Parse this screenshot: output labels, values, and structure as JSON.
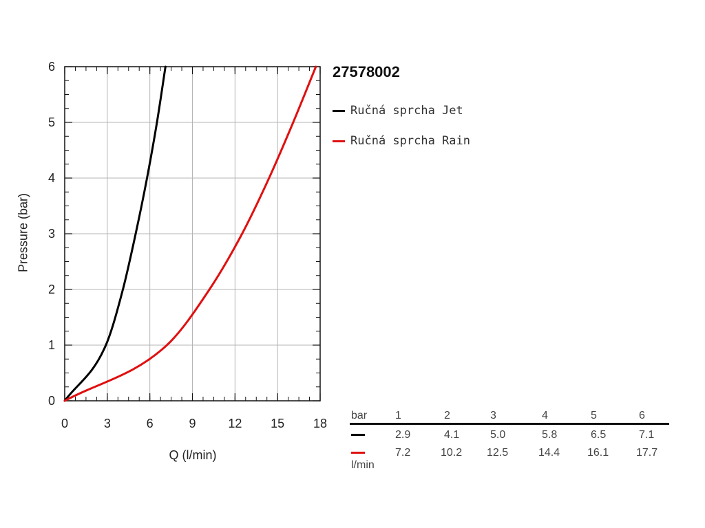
{
  "chart_data": {
    "type": "line",
    "title": "27578002",
    "xlabel": "Q (l/min)",
    "ylabel": "Pressure (bar)",
    "xlim": [
      0,
      18
    ],
    "ylim": [
      0,
      6
    ],
    "xticks": [
      "0",
      "3",
      "6",
      "9",
      "12",
      "15",
      "18"
    ],
    "yticks": [
      "0",
      "1",
      "2",
      "3",
      "4",
      "5",
      "6"
    ],
    "grid": true,
    "legend_position": "right",
    "series": [
      {
        "name": "Ručná sprcha Jet",
        "color": "#000000",
        "x": [
          0,
          2.9,
          4.1,
          5.0,
          5.8,
          6.5,
          7.1
        ],
        "y": [
          0,
          1,
          2,
          3,
          4,
          5,
          6
        ]
      },
      {
        "name": "Ručná sprcha Rain",
        "color": "#e01010",
        "x": [
          0,
          7.2,
          10.2,
          12.5,
          14.4,
          16.1,
          17.7
        ],
        "y": [
          0,
          1,
          2,
          3,
          4,
          5,
          6
        ]
      }
    ]
  },
  "table": {
    "header_unit": "bar",
    "footer_unit": "l/min",
    "pressures": [
      "1",
      "2",
      "3",
      "4",
      "5",
      "6"
    ],
    "rows": [
      {
        "color": "#000000",
        "values": [
          "2.9",
          "4.1",
          "5.0",
          "5.8",
          "6.5",
          "7.1"
        ]
      },
      {
        "color": "#e01010",
        "values": [
          "7.2",
          "10.2",
          "12.5",
          "14.4",
          "16.1",
          "17.7"
        ]
      }
    ]
  }
}
